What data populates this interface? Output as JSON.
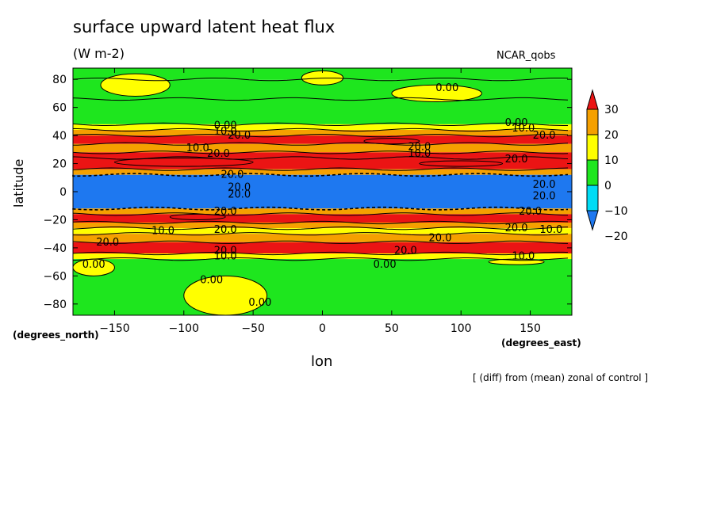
{
  "chart_data": {
    "type": "heatmap",
    "title": "surface upward latent heat flux",
    "units": "(W m-2)",
    "model": "NCAR_qobs",
    "xlabel": "lon",
    "ylabel": "latitude",
    "x_unit_label": "(degrees_east)",
    "y_unit_label": "(degrees_north)",
    "annotation": "[ (diff) from (mean) zonal of control ]",
    "xlim": [
      -180,
      180
    ],
    "ylim": [
      -88,
      88
    ],
    "x_ticks": [
      -150,
      -100,
      -50,
      0,
      50,
      100,
      150
    ],
    "x_tick_labels": [
      "−150",
      "−100",
      "−50",
      "0",
      "50",
      "100",
      "150"
    ],
    "y_ticks": [
      80,
      60,
      40,
      20,
      0,
      -20,
      -40,
      -60,
      -80
    ],
    "y_tick_labels": [
      "80",
      "60",
      "40",
      "20",
      "0",
      "−20",
      "−40",
      "−60",
      "−80"
    ],
    "colorbar": {
      "levels": [
        -20,
        -10,
        0,
        10,
        20,
        30
      ],
      "level_labels": [
        "−20",
        "−10",
        "0",
        "10",
        "20",
        "30"
      ],
      "colors": [
        "#1e78f0",
        "#00dcf5",
        "#1ee61e",
        "#ffff00",
        "#f5a000",
        "#eb1414"
      ]
    },
    "bands": [
      {
        "lat": [
          80,
          88
        ],
        "value": -5
      },
      {
        "lat": [
          66,
          80
        ],
        "value": -5
      },
      {
        "lat": [
          48,
          66
        ],
        "value": -5
      },
      {
        "lat": [
          44,
          48
        ],
        "value": 5
      },
      {
        "lat": [
          40,
          44
        ],
        "value": 15
      },
      {
        "lat": [
          34,
          40
        ],
        "value": 25
      },
      {
        "lat": [
          28,
          34
        ],
        "value": 15
      },
      {
        "lat": [
          24,
          28
        ],
        "value": 25
      },
      {
        "lat": [
          16,
          24
        ],
        "value": 35
      },
      {
        "lat": [
          12,
          16
        ],
        "value": 15
      },
      {
        "lat": [
          -12,
          12
        ],
        "value": -25
      },
      {
        "lat": [
          -16,
          -12
        ],
        "value": 15
      },
      {
        "lat": [
          -22,
          -16
        ],
        "value": 25
      },
      {
        "lat": [
          -26,
          -22
        ],
        "value": 15
      },
      {
        "lat": [
          -30,
          -26
        ],
        "value": 5
      },
      {
        "lat": [
          -36,
          -30
        ],
        "value": 15
      },
      {
        "lat": [
          -44,
          -36
        ],
        "value": 25
      },
      {
        "lat": [
          -48,
          -44
        ],
        "value": 5
      },
      {
        "lat": [
          -88,
          -48
        ],
        "value": -5
      }
    ],
    "patches": [
      {
        "lon": [
          -160,
          -110
        ],
        "lat": [
          68,
          84
        ],
        "value": 5
      },
      {
        "lon": [
          -15,
          15
        ],
        "lat": [
          76,
          86
        ],
        "value": 5
      },
      {
        "lon": [
          50,
          115
        ],
        "lat": [
          64,
          76
        ],
        "value": 5
      },
      {
        "lon": [
          -150,
          -50
        ],
        "lat": [
          18,
          24
        ],
        "value": 35
      },
      {
        "lon": [
          70,
          130
        ],
        "lat": [
          18,
          22
        ],
        "value": 35
      },
      {
        "lon": [
          30,
          70
        ],
        "lat": [
          34,
          38
        ],
        "value": 35
      },
      {
        "lon": [
          -110,
          -70
        ],
        "lat": [
          -20,
          -16
        ],
        "value": 35
      },
      {
        "lon": [
          -180,
          -150
        ],
        "lat": [
          -60,
          -48
        ],
        "value": 5
      },
      {
        "lon": [
          -100,
          -40
        ],
        "lat": [
          -88,
          -60
        ],
        "value": 5
      },
      {
        "lon": [
          120,
          160
        ],
        "lat": [
          -52,
          -48
        ],
        "value": 5
      }
    ],
    "contour_labels": [
      {
        "text": "0.00",
        "lon": 90,
        "lat": 74
      },
      {
        "text": "0.00",
        "lon": -70,
        "lat": 47
      },
      {
        "text": "10.0",
        "lon": -70,
        "lat": 43
      },
      {
        "text": "20.0",
        "lon": -60,
        "lat": 40
      },
      {
        "text": "0.00",
        "lon": 140,
        "lat": 49
      },
      {
        "text": "10.0",
        "lon": 145,
        "lat": 45
      },
      {
        "text": "20.0",
        "lon": 160,
        "lat": 40
      },
      {
        "text": "10.0",
        "lon": -90,
        "lat": 31
      },
      {
        "text": "20.0",
        "lon": -75,
        "lat": 27
      },
      {
        "text": "20.0",
        "lon": 70,
        "lat": 32
      },
      {
        "text": "10.0",
        "lon": 70,
        "lat": 27
      },
      {
        "text": "20.0",
        "lon": 140,
        "lat": 23
      },
      {
        "text": "20.0",
        "lon": -65,
        "lat": 12
      },
      {
        "text": "20.0",
        "lon": -60,
        "lat": 3
      },
      {
        "text": "20.0",
        "lon": -60,
        "lat": -2
      },
      {
        "text": "20.0",
        "lon": 160,
        "lat": 5
      },
      {
        "text": "20.0",
        "lon": 160,
        "lat": -3
      },
      {
        "text": "20.0",
        "lon": -70,
        "lat": -14
      },
      {
        "text": "20.0",
        "lon": 150,
        "lat": -14
      },
      {
        "text": "20.0",
        "lon": -70,
        "lat": -27
      },
      {
        "text": "10.0",
        "lon": -115,
        "lat": -28
      },
      {
        "text": "20.0",
        "lon": -155,
        "lat": -36
      },
      {
        "text": "20.0",
        "lon": 85,
        "lat": -33
      },
      {
        "text": "20.0",
        "lon": 60,
        "lat": -42
      },
      {
        "text": "20.0",
        "lon": 140,
        "lat": -26
      },
      {
        "text": "10.0",
        "lon": 165,
        "lat": -27
      },
      {
        "text": "20.0",
        "lon": -70,
        "lat": -42
      },
      {
        "text": "10.0",
        "lon": -70,
        "lat": -46
      },
      {
        "text": "0.00",
        "lon": 45,
        "lat": -52
      },
      {
        "text": "10.0",
        "lon": 145,
        "lat": -46
      },
      {
        "text": "0.00",
        "lon": -165,
        "lat": -52
      },
      {
        "text": "0.00",
        "lon": -80,
        "lat": -63
      },
      {
        "text": "0.00",
        "lon": -45,
        "lat": -79
      }
    ]
  }
}
